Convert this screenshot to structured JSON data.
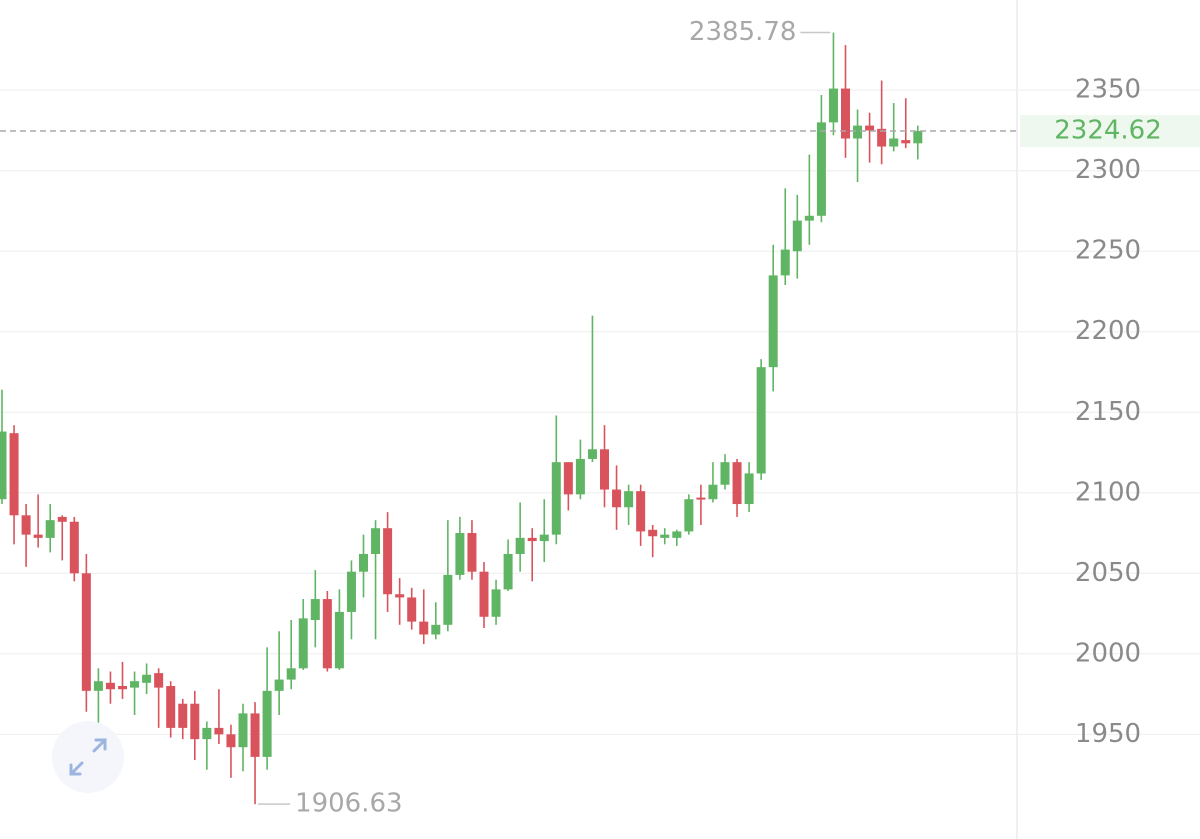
{
  "chart_data": {
    "type": "candlestick",
    "ylim": [
      1885,
      2406
    ],
    "yticks": [
      1950,
      2000,
      2050,
      2100,
      2150,
      2200,
      2250,
      2300,
      2350
    ],
    "grid": true,
    "up_color": "#5fb563",
    "down_color": "#d9535c",
    "open": [
      2096,
      2137,
      2086,
      2074,
      2072,
      2085,
      2082,
      2050,
      1977,
      1982,
      1980,
      1979,
      1982,
      1988,
      1980,
      1969,
      1969,
      1947,
      1954,
      1950,
      1942,
      1963,
      1936,
      1977,
      1984,
      1991,
      2021,
      2034,
      1991,
      2026,
      2051,
      2062,
      2078,
      2037,
      2035,
      2020,
      2012,
      2018,
      2049,
      2075,
      2051,
      2023,
      2040,
      2062,
      2072,
      2070,
      2074,
      2119,
      2099,
      2121,
      2127,
      2102,
      2091,
      2101,
      2077,
      2072,
      2072,
      2076,
      2097,
      2096,
      2105,
      2119,
      2093,
      2112,
      2178,
      2235,
      2250,
      2269,
      2272,
      2330,
      2351,
      2320,
      2328,
      2326,
      2315,
      2319,
      2317
    ],
    "high": [
      2164,
      2142,
      2093,
      2099,
      2093,
      2086,
      2085,
      2062,
      1991,
      1989,
      1995,
      1989,
      1994,
      1991,
      1983,
      1972,
      1977,
      1958,
      1978,
      1956,
      1969,
      1970,
      2004,
      2014,
      2021,
      2034,
      2052,
      2039,
      2040,
      2058,
      2074,
      2083,
      2088,
      2047,
      2041,
      2040,
      2032,
      2083,
      2085,
      2083,
      2057,
      2046,
      2071,
      2094,
      2078,
      2096,
      2148,
      2119,
      2133,
      2210,
      2142,
      2117,
      2105,
      2105,
      2080,
      2078,
      2077,
      2099,
      2105,
      2119,
      2124,
      2121,
      2119,
      2183,
      2254,
      2289,
      2285,
      2310,
      2347,
      2385.78,
      2378,
      2338,
      2336,
      2356,
      2342,
      2345,
      2328
    ],
    "low": [
      2093,
      2068,
      2054,
      2066,
      2063,
      2058,
      2045,
      1964,
      1954,
      1969,
      1972,
      1962,
      1975,
      1954,
      1948,
      1947,
      1934,
      1928,
      1944,
      1923,
      1927,
      1906.63,
      1928,
      1962,
      1978,
      1990,
      2004,
      1989,
      1990,
      2009,
      2035,
      2009,
      2026,
      2018,
      2015,
      2006,
      2009,
      2014,
      2046,
      2046,
      2016,
      2018,
      2039,
      2051,
      2045,
      2057,
      2068,
      2089,
      2096,
      2119,
      2091,
      2077,
      2080,
      2067,
      2060,
      2068,
      2067,
      2074,
      2080,
      2094,
      2102,
      2085,
      2088,
      2108,
      2163,
      2229,
      2233,
      2254,
      2268,
      2322,
      2308,
      2293,
      2305,
      2304,
      2312,
      2314,
      2307
    ],
    "close": [
      2138,
      2086,
      2074,
      2072,
      2083,
      2082,
      2050,
      1977,
      1983,
      1978,
      1978,
      1983,
      1987,
      1979,
      1954,
      1954,
      1947,
      1954,
      1950,
      1942,
      1963,
      1936,
      1977,
      1984,
      1991,
      2022,
      2034,
      1991,
      2026,
      2051,
      2062,
      2078,
      2037,
      2035,
      2020,
      2012,
      2018,
      2049,
      2075,
      2051,
      2023,
      2040,
      2062,
      2072,
      2070,
      2074,
      2119,
      2099,
      2121,
      2127,
      2102,
      2091,
      2101,
      2076,
      2073,
      2074,
      2076,
      2096,
      2096,
      2105,
      2119,
      2093,
      2112,
      2178,
      2235,
      2251,
      2269,
      2272,
      2330,
      2351,
      2320,
      2328,
      2325,
      2315,
      2320,
      2317,
      2324.62
    ]
  }
}
